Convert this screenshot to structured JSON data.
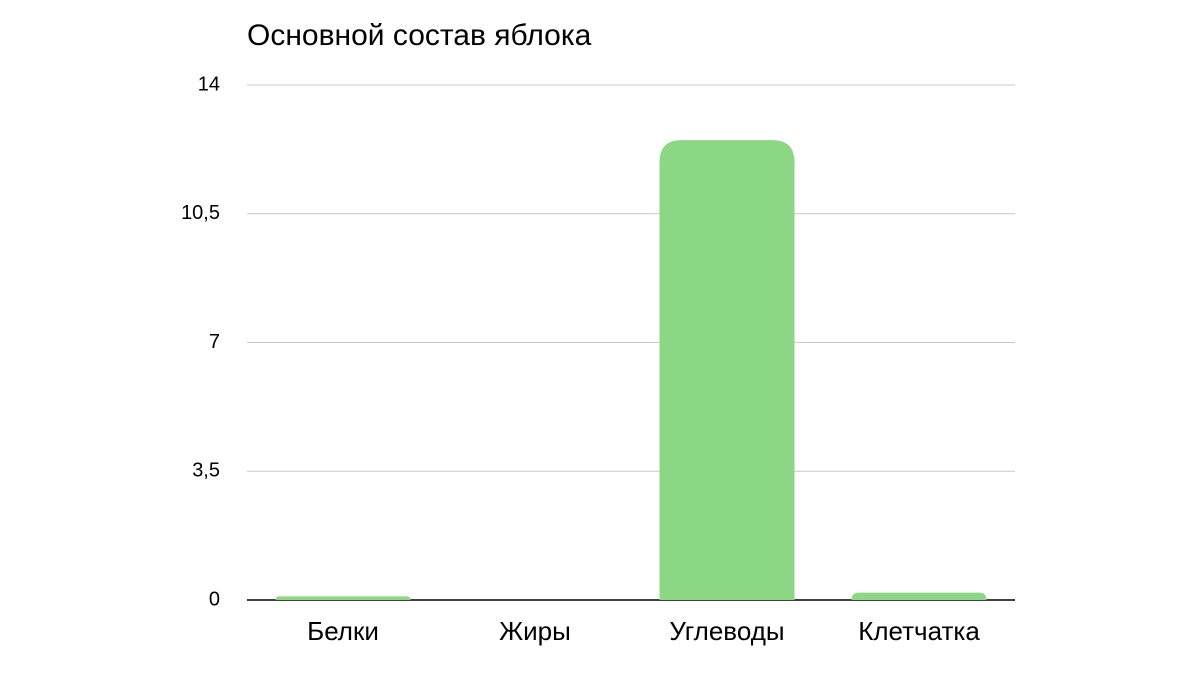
{
  "chart_data": {
    "type": "bar",
    "title": "Основной состав яблока",
    "categories": [
      "Белки",
      "Жиры",
      "Углеводы",
      "Клетчатка"
    ],
    "values": [
      0.1,
      0,
      12.5,
      0.2
    ],
    "color": "#8cd784",
    "ylim": [
      0,
      14
    ],
    "yticks": [
      0,
      {
        "value": 3.5,
        "label": "3,5"
      },
      7,
      {
        "value": 10.5,
        "label": "10,5"
      },
      14
    ],
    "grid": true
  }
}
